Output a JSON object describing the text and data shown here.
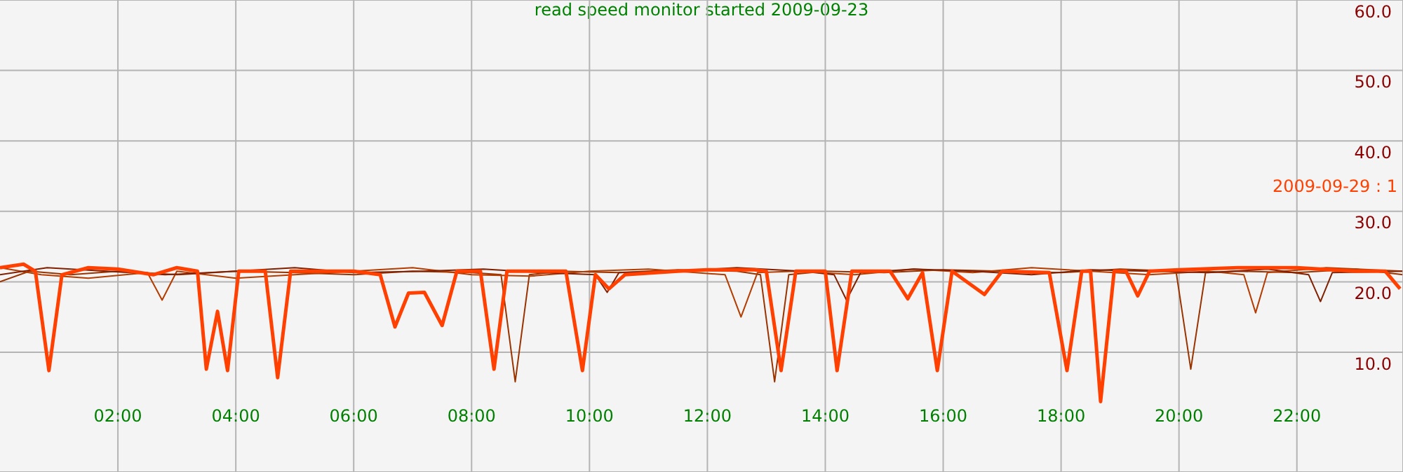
{
  "chart_data": {
    "type": "line",
    "title": "read speed monitor started 2009-09-23",
    "xlim": [
      0,
      23.8
    ],
    "ylim": [
      -7,
      60
    ],
    "xticks": [
      {
        "value": 2,
        "label": "02:00"
      },
      {
        "value": 4,
        "label": "04:00"
      },
      {
        "value": 6,
        "label": "06:00"
      },
      {
        "value": 8,
        "label": "08:00"
      },
      {
        "value": 10,
        "label": "10:00"
      },
      {
        "value": 12,
        "label": "12:00"
      },
      {
        "value": 14,
        "label": "14:00"
      },
      {
        "value": 16,
        "label": "16:00"
      },
      {
        "value": 18,
        "label": "18:00"
      },
      {
        "value": 20,
        "label": "20:00"
      },
      {
        "value": 22,
        "label": "22:00"
      }
    ],
    "yticks": [
      {
        "value": 10,
        "label": "10.0"
      },
      {
        "value": 20,
        "label": "20.0"
      },
      {
        "value": 30,
        "label": "30.0"
      },
      {
        "value": 40,
        "label": "40.0"
      },
      {
        "value": 50,
        "label": "50.0"
      },
      {
        "value": 60,
        "label": "60.0"
      }
    ],
    "grid": true,
    "series": [
      {
        "color": "#993300",
        "x": [
          0,
          0.5,
          1.2,
          2,
          3,
          4,
          5,
          6,
          7,
          8,
          8.5,
          8.74,
          8.98,
          9.5,
          10.5,
          11.5,
          12.5,
          12.9,
          13.14,
          13.38,
          14,
          15,
          16,
          17,
          18,
          19,
          19.95,
          20.2,
          20.45,
          21,
          22,
          23,
          23.8
        ],
        "values": [
          20,
          21.5,
          21,
          21.5,
          21,
          21.5,
          21.3,
          21,
          21.5,
          21.3,
          21,
          5.8,
          21,
          21.5,
          21.3,
          21.7,
          21.5,
          21,
          5.8,
          21,
          21.5,
          21.3,
          21.7,
          21.5,
          21.3,
          21.8,
          21.5,
          7.6,
          21.3,
          21.5,
          21.3,
          21.8,
          21
        ]
      },
      {
        "color": "#b33c00",
        "x": [
          0,
          0.7,
          1.5,
          2.5,
          2.75,
          3,
          4,
          5,
          6,
          7,
          8,
          9,
          10,
          11,
          12.3,
          12.57,
          12.85,
          13.5,
          14.5,
          15.5,
          16.5,
          17.5,
          18.5,
          19.5,
          20.5,
          21.1,
          21.3,
          21.5,
          22.5,
          23.8
        ],
        "values": [
          22,
          21,
          20.5,
          21.3,
          17.4,
          21.5,
          20.5,
          21,
          21.5,
          22,
          21,
          20.8,
          21.5,
          21.8,
          21,
          15,
          21.3,
          21.5,
          21,
          21.8,
          21.3,
          22,
          21.5,
          21,
          21.5,
          21,
          15.6,
          21.3,
          22,
          21.5
        ]
      },
      {
        "color": "#802000",
        "x": [
          0,
          0.8,
          1.8,
          2.8,
          4,
          5,
          6,
          7.2,
          8.2,
          9.2,
          10.1,
          10.3,
          10.5,
          11.5,
          12.5,
          13.6,
          14.15,
          14.36,
          14.6,
          15.5,
          16.5,
          17.5,
          18.5,
          19.5,
          20.5,
          21.5,
          22.2,
          22.4,
          22.6,
          23.8
        ],
        "values": [
          21,
          22,
          21.5,
          21,
          21.5,
          22,
          21.3,
          21.5,
          21.8,
          21.3,
          21,
          18.5,
          21.3,
          21.5,
          22,
          21.5,
          21,
          17.4,
          21.3,
          21.8,
          21.5,
          21,
          21.7,
          21.5,
          21.3,
          21.8,
          21,
          17.2,
          21.3,
          21.5
        ]
      },
      {
        "name": "2009-09-29 : 1",
        "color": "#ff4000",
        "x": [
          0,
          0.4,
          0.6,
          0.83,
          1.05,
          1.5,
          2,
          2.6,
          3.0,
          3.35,
          3.5,
          3.69,
          3.86,
          4.05,
          4.5,
          4.71,
          4.93,
          5.5,
          6,
          6.45,
          6.7,
          6.93,
          7.2,
          7.5,
          7.75,
          8.15,
          8.38,
          8.6,
          9.2,
          9.6,
          9.88,
          10.1,
          10.33,
          10.6,
          11.5,
          12,
          12.8,
          13.0,
          13.25,
          13.5,
          14.0,
          14.2,
          14.45,
          15.1,
          15.4,
          15.65,
          15.9,
          16.15,
          16.7,
          17,
          17.8,
          18.1,
          18.35,
          18.5,
          18.67,
          18.9,
          19.1,
          19.3,
          19.5,
          20,
          21,
          22,
          23,
          23.5,
          23.75
        ],
        "values": [
          22,
          22.5,
          21.5,
          7.4,
          21,
          22,
          21.8,
          21,
          22,
          21.5,
          7.6,
          15.8,
          7.4,
          21.5,
          21.5,
          6.4,
          21.5,
          21.5,
          21.5,
          21,
          13.6,
          18.4,
          18.5,
          13.8,
          21.5,
          21.5,
          7.6,
          21.5,
          21.5,
          21.5,
          7.4,
          21,
          19,
          21,
          21.5,
          21.7,
          21.7,
          21.5,
          7.4,
          21.5,
          21.5,
          7.4,
          21.5,
          21.5,
          17.6,
          21.3,
          7.4,
          21.5,
          18.2,
          21.5,
          21.3,
          7.4,
          21.5,
          21.5,
          3,
          21.5,
          21.5,
          18,
          21.5,
          21.7,
          22,
          22,
          21.5,
          21.5,
          19
        ]
      }
    ]
  }
}
